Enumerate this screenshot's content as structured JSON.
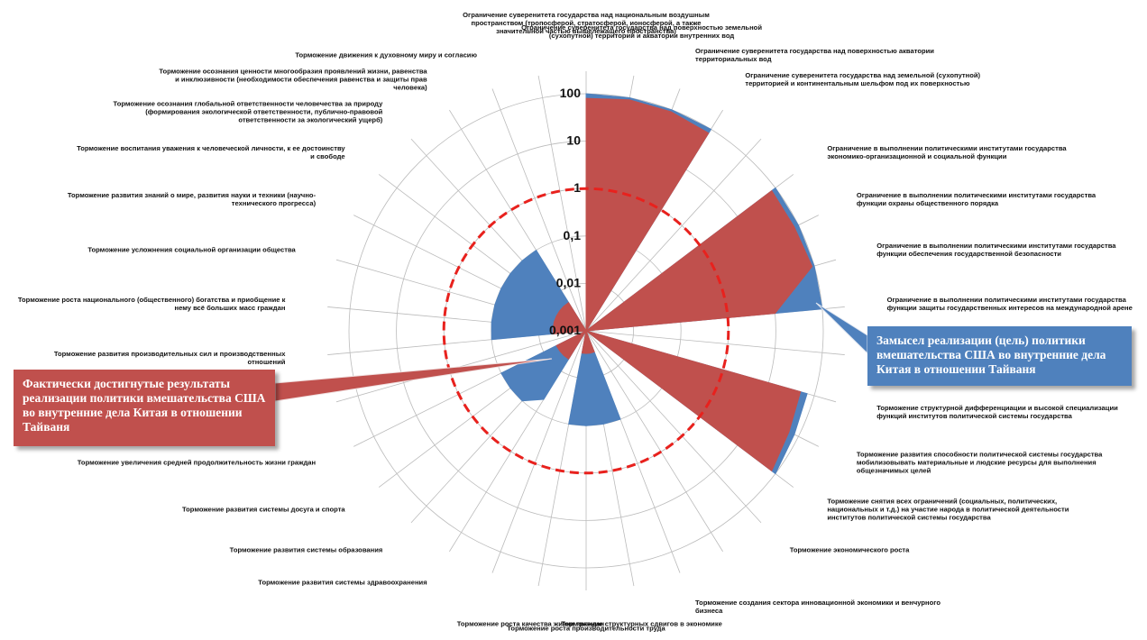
{
  "chart_data": {
    "type": "radar",
    "categories": [
      "Ограничение суверенитета государства над национальным воздушным пространством (тропосферой, стратосферой, ионосферой, а также значительной частью вышележащего пространства)",
      "Ограничение суверенитета государства над поверхностью земельной (сухопутной) территории и акватории внутренних вод",
      "Ограничение суверенитета государства над поверхностью акватории территориальных вод",
      "Ограничение суверенитета государства над земельной (сухопутной) территорией и континентальным шельфом под их поверхностью",
      null,
      "Ограничение в выполнении политическими институтами государства экономико-организационной и социальной функции",
      "Ограничение в выполнении политическими институтами государства функции охраны общественного порядка",
      "Ограничение в выполнении политическими институтами государства функции обеспечения государственной безопасности",
      "Ограничение в выполнении политическими институтами государства функции защиты государственных интересов на международной арене",
      null,
      "Торможение структурной дифференциации и высокой специализации функций институтов политической системы государства",
      "Торможение развития способности политической системы государства мобилизовывать материальные и людские ресурсы для выполнения общезначимых целей",
      "Торможение снятия всех ограничений (социальных, политических, национальных и т.д.) на участие народа в политической деятельности институтов политической системы государства",
      "Торможение экономического роста",
      null,
      "Торможение создания сектора инновационной экономики и венчурного бизнеса",
      "Торможение структурных сдвигов в экономике",
      "Торможение роста производительности труда",
      "Торможение роста качества жизни граждан",
      null,
      "Торможение развития системы здравоохранения",
      "Торможение развития системы образования",
      "Торможение развития системы досуга и спорта",
      "Торможение увеличения средней продолжительность жизни граждан",
      null,
      "Торможение развития производительных сил и производственных отношений",
      "Торможение роста национального (общественного) богатства и приобщение к нему всё больших масс граждан",
      "Торможение усложнения социальной организации общества",
      "Торможение развития знаний о мире, развития науки и техники (научно-технического прогресса)",
      "Торможение воспитания уважения к человеческой личности, к ее достоинству и свободе",
      "Торможение осознания глобальной ответственности человечества за природу (формирования экологической ответственности, публично-правовой ответственности за экологический ущерб)",
      "Торможение осознания ценности многообразия проявлений жизни, равенства и инклюзивности (необходимости обеспечения равенства и защиты прав человека)",
      "Торможение движения к духовному миру и согласию",
      null
    ],
    "series": [
      {
        "name": "Замысел реализации (цель) политики вмешательства США во внутренние дела Китая в отношении Тайваня",
        "color": "#4f81bd",
        "values": [
          100,
          100,
          100,
          100,
          0.001,
          100,
          100,
          100,
          100,
          0.001,
          70,
          80,
          100,
          0.001,
          0.001,
          0.1,
          0.1,
          0.1,
          0.1,
          0.001,
          0.05,
          0.1,
          0.1,
          0.1,
          0.001,
          0.1,
          0.1,
          0.1,
          0.1,
          0.1,
          0.1,
          0.1,
          0.001,
          0.001
        ]
      },
      {
        "name": "Фактически достигнутые результаты реализации политики вмешательства США во внутренние дела Китая в отношении Тайваня",
        "color": "#c0504d",
        "values": [
          80,
          90,
          90,
          80,
          0.001,
          80,
          80,
          90,
          10,
          0.001,
          50,
          60,
          80,
          0.001,
          0.001,
          0.003,
          0.003,
          0.003,
          0.003,
          0.001,
          0.005,
          0.005,
          0.005,
          0.005,
          0.001,
          0.005,
          0.005,
          0.005,
          0.005,
          0.005,
          0.005,
          0.005,
          0.001,
          0.001
        ]
      }
    ],
    "ylim": [
      0.001,
      100
    ],
    "log_scale": true,
    "yticks": [
      {
        "value": 0.001,
        "label": "0,001"
      },
      {
        "value": 0.01,
        "label": "0,01"
      },
      {
        "value": 0.1,
        "label": "0,1"
      },
      1,
      10,
      100
    ],
    "grid": true,
    "dashed_ring": 1,
    "dashed_ring_color": "#e8211d"
  }
}
